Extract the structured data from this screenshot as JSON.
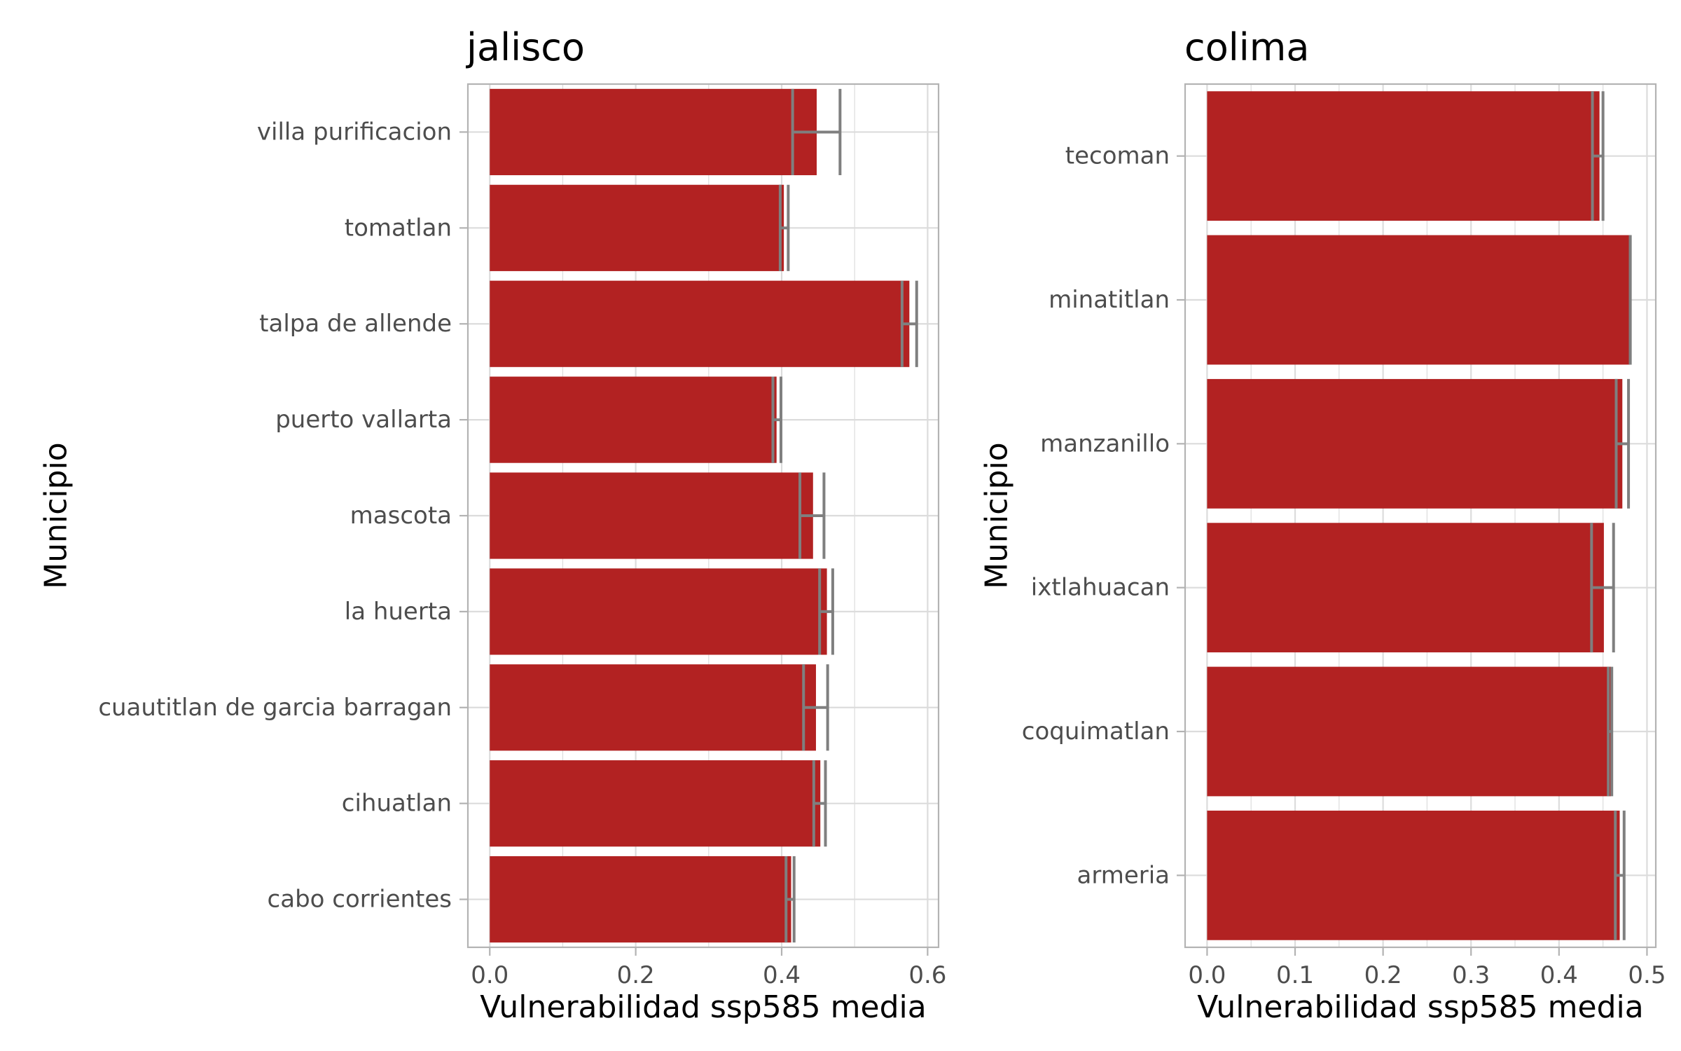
{
  "colors": {
    "bar": "#b22222",
    "error": "#7f7f7f",
    "grid": "#dcdcdc",
    "frame": "#b3b3b3"
  },
  "chart_data": [
    {
      "type": "bar",
      "orientation": "horizontal",
      "title": "jalisco",
      "xlabel": "Vulnerabilidad ssp585 media",
      "ylabel": "Municipio",
      "xlim": [
        -0.03,
        0.615
      ],
      "xticks": [
        "0.0",
        "0.2",
        "0.4",
        "0.6"
      ],
      "xtick_values": [
        0.0,
        0.2,
        0.4,
        0.6
      ],
      "grid": true,
      "categories": [
        "villa purificacion",
        "tomatlan",
        "talpa de allende",
        "puerto vallarta",
        "mascota",
        "la huerta",
        "cuautitlan de garcia barragan",
        "cihuatlan",
        "cabo corrientes"
      ],
      "values": [
        0.448,
        0.403,
        0.575,
        0.393,
        0.443,
        0.462,
        0.447,
        0.453,
        0.413
      ],
      "error_low": [
        0.415,
        0.398,
        0.565,
        0.388,
        0.425,
        0.452,
        0.43,
        0.444,
        0.406
      ],
      "error_high": [
        0.48,
        0.409,
        0.585,
        0.399,
        0.458,
        0.47,
        0.463,
        0.46,
        0.417
      ]
    },
    {
      "type": "bar",
      "orientation": "horizontal",
      "title": "colima",
      "xlabel": "Vulnerabilidad ssp585 media",
      "ylabel": "Municipio",
      "xlim": [
        -0.025,
        0.51
      ],
      "xticks": [
        "0.0",
        "0.1",
        "0.2",
        "0.3",
        "0.4",
        "0.5"
      ],
      "xtick_values": [
        0.0,
        0.1,
        0.2,
        0.3,
        0.4,
        0.5
      ],
      "grid": true,
      "categories": [
        "tecoman",
        "minatitlan",
        "manzanillo",
        "ixtlahuacan",
        "coquimatlan",
        "armeria"
      ],
      "values": [
        0.446,
        0.481,
        0.472,
        0.451,
        0.459,
        0.469
      ],
      "error_low": [
        0.438,
        0.481,
        0.465,
        0.437,
        0.456,
        0.464
      ],
      "error_high": [
        0.45,
        0.481,
        0.479,
        0.462,
        0.46,
        0.474
      ]
    }
  ]
}
